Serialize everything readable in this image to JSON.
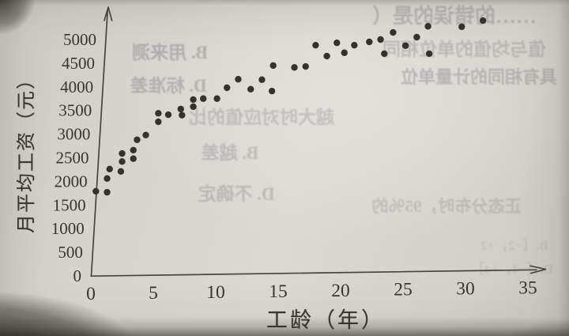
{
  "chart_data": {
    "type": "scatter",
    "title": "",
    "xlabel": "工龄（年）",
    "ylabel": "月平均工资（元）",
    "x_ticks": [
      0,
      5,
      10,
      15,
      20,
      25,
      30,
      35
    ],
    "y_ticks": [
      0,
      500,
      1000,
      1500,
      2000,
      2500,
      3000,
      3500,
      4000,
      4500,
      5000
    ],
    "xlim": [
      0,
      36.5
    ],
    "ylim": [
      0,
      5650
    ],
    "grid": false,
    "legend": null,
    "points": [
      [
        0.4,
        1790
      ],
      [
        1.3,
        1770
      ],
      [
        1.3,
        2060
      ],
      [
        1.5,
        2260
      ],
      [
        2.4,
        2210
      ],
      [
        2.5,
        2420
      ],
      [
        2.5,
        2590
      ],
      [
        3.4,
        2480
      ],
      [
        3.4,
        2660
      ],
      [
        3.7,
        2880
      ],
      [
        4.4,
        2980
      ],
      [
        5.4,
        3260
      ],
      [
        5.4,
        3440
      ],
      [
        6.2,
        3410
      ],
      [
        7.2,
        3530
      ],
      [
        7.3,
        3400
      ],
      [
        8.2,
        3580
      ],
      [
        8.2,
        3730
      ],
      [
        9.0,
        3750
      ],
      [
        10.1,
        3750
      ],
      [
        10.9,
        3980
      ],
      [
        11.8,
        4160
      ],
      [
        12.8,
        3950
      ],
      [
        13.7,
        4150
      ],
      [
        14.5,
        3910
      ],
      [
        14.6,
        4450
      ],
      [
        16.3,
        4410
      ],
      [
        17.2,
        4430
      ],
      [
        18.0,
        4880
      ],
      [
        18.9,
        4650
      ],
      [
        19.7,
        4930
      ],
      [
        20.3,
        4720
      ],
      [
        21.1,
        4880
      ],
      [
        22.3,
        4950
      ],
      [
        23.2,
        5000
      ],
      [
        23.5,
        4700
      ],
      [
        24.2,
        5150
      ],
      [
        25.2,
        4870
      ],
      [
        26.1,
        5050
      ],
      [
        27.0,
        5280
      ],
      [
        27.1,
        4700
      ],
      [
        29.7,
        5270
      ],
      [
        31.4,
        5400
      ]
    ]
  },
  "bleed_through_text": {
    "fragments": [
      "……的错误的是（",
      "B. 用来测",
      "值与均值的单位相同",
      "D. 标准差",
      "具有相同的计量单位",
      "越大时对应值的比",
      "B. 越差",
      "D. 不确定",
      "正态分布时，95％的",
      "B.［−2，+2",
      "D.［−4，+4］"
    ]
  }
}
